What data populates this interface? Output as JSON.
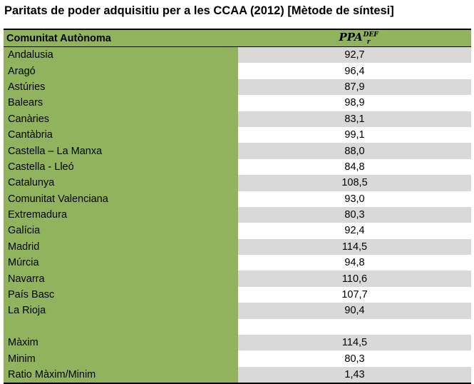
{
  "title": "Paritats de poder adquisitiu per a les CCAA (2012) [Mètode de síntesi]",
  "header": {
    "col1": "Comunitat Autònoma",
    "col2_base": "PPA",
    "col2_sup": "DEF",
    "col2_sub": "r"
  },
  "rows": [
    {
      "name": "Andalusia",
      "value": "92,7"
    },
    {
      "name": "Aragó",
      "value": "96,4"
    },
    {
      "name": "Astúries",
      "value": "87,9"
    },
    {
      "name": "Balears",
      "value": "98,9"
    },
    {
      "name": "Canàries",
      "value": "83,1"
    },
    {
      "name": "Cantàbria",
      "value": "99,1"
    },
    {
      "name": "Castella – La Manxa",
      "value": "88,0"
    },
    {
      "name": "Castella - Lleó",
      "value": "84,8"
    },
    {
      "name": "Catalunya",
      "value": "108,5"
    },
    {
      "name": "Comunitat Valenciana",
      "value": "93,0"
    },
    {
      "name": "Extremadura",
      "value": "80,3"
    },
    {
      "name": "Galícia",
      "value": "92,4"
    },
    {
      "name": "Madrid",
      "value": "114,5"
    },
    {
      "name": "Múrcia",
      "value": "94,8"
    },
    {
      "name": "Navarra",
      "value": "110,6"
    },
    {
      "name": "País Basc",
      "value": "107,7"
    },
    {
      "name": "La Rioja",
      "value": "90,4"
    },
    {
      "name": "",
      "value": ""
    },
    {
      "name": "Màxim",
      "value": "114,5"
    },
    {
      "name": "Minim",
      "value": "80,3"
    },
    {
      "name": "Ratio Màxim/Minim",
      "value": "1,43"
    }
  ],
  "colors": {
    "label_column": "#92b35e",
    "stripe": "#d9d9d9"
  }
}
